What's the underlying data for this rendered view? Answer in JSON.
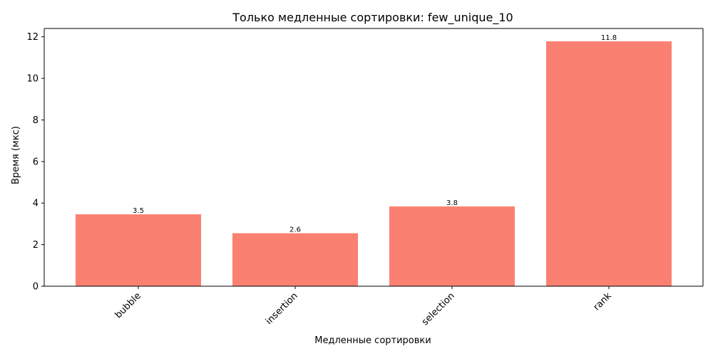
{
  "chart_data": {
    "type": "bar",
    "title": "Только медленные сортировки: few_unique_10",
    "xlabel": "Медленные сортировки",
    "ylabel": "Время (мкс)",
    "categories": [
      "bubble",
      "insertion",
      "selection",
      "rank"
    ],
    "values": [
      3.46,
      2.55,
      3.84,
      11.78
    ],
    "value_labels": [
      "3.5",
      "2.6",
      "3.8",
      "11.8"
    ],
    "ylim": [
      0,
      12.4
    ],
    "yticks": [
      0,
      2,
      4,
      6,
      8,
      10,
      12
    ],
    "ytick_labels": [
      "0",
      "2",
      "4",
      "6",
      "8",
      "10",
      "12"
    ],
    "bar_color": "#fa8072",
    "grid": false,
    "legend": false,
    "xtick_rotation": 45
  }
}
